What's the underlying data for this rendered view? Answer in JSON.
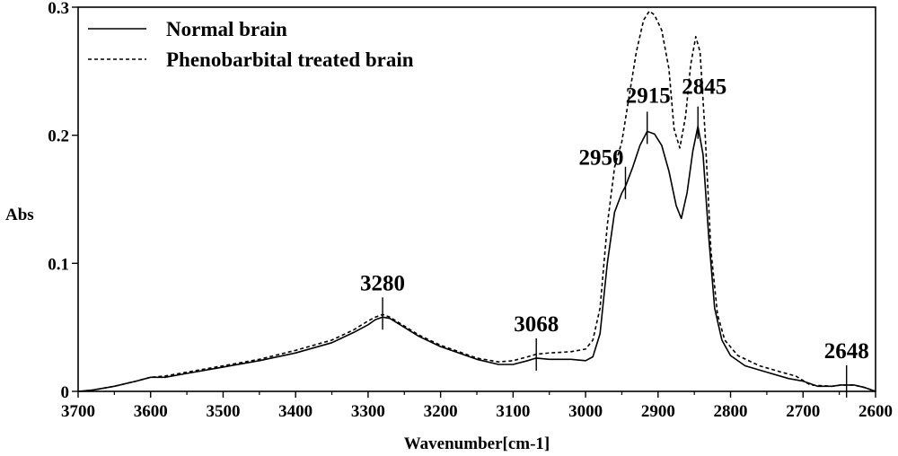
{
  "chart_data": {
    "type": "line",
    "xlabel": "Wavenumber[cm-1]",
    "ylabel": "Abs",
    "xlim": [
      3700,
      2600
    ],
    "ylim": [
      0,
      0.3
    ],
    "x_reversed": true,
    "grid": false,
    "legend_position": "top-left",
    "x_ticks": [
      3700,
      3600,
      3500,
      3400,
      3300,
      3200,
      3100,
      3000,
      2900,
      2800,
      2700,
      2600
    ],
    "x_tick_labels": [
      "3700",
      "3600",
      "3500",
      "3400",
      "3300",
      "3200",
      "3100",
      "3000",
      "2900",
      "2800",
      "2700",
      "2600"
    ],
    "y_ticks": [
      0,
      0.1,
      0.2,
      0.3
    ],
    "y_tick_labels": [
      "0",
      "0.1",
      "0.2",
      "0.3"
    ],
    "series": [
      {
        "name": "Normal brain",
        "style": "solid",
        "color": "#000000",
        "points": [
          [
            3700,
            0.0
          ],
          [
            3680,
            0.001
          ],
          [
            3650,
            0.004
          ],
          [
            3620,
            0.008
          ],
          [
            3600,
            0.011
          ],
          [
            3580,
            0.011
          ],
          [
            3550,
            0.014
          ],
          [
            3500,
            0.019
          ],
          [
            3450,
            0.024
          ],
          [
            3400,
            0.03
          ],
          [
            3350,
            0.038
          ],
          [
            3320,
            0.046
          ],
          [
            3300,
            0.052
          ],
          [
            3290,
            0.056
          ],
          [
            3280,
            0.058
          ],
          [
            3270,
            0.057
          ],
          [
            3250,
            0.05
          ],
          [
            3230,
            0.043
          ],
          [
            3200,
            0.035
          ],
          [
            3170,
            0.029
          ],
          [
            3150,
            0.025
          ],
          [
            3120,
            0.021
          ],
          [
            3100,
            0.021
          ],
          [
            3080,
            0.024
          ],
          [
            3068,
            0.026
          ],
          [
            3050,
            0.025
          ],
          [
            3020,
            0.025
          ],
          [
            3000,
            0.024
          ],
          [
            2990,
            0.027
          ],
          [
            2980,
            0.045
          ],
          [
            2970,
            0.1
          ],
          [
            2960,
            0.14
          ],
          [
            2950,
            0.155
          ],
          [
            2945,
            0.16
          ],
          [
            2935,
            0.175
          ],
          [
            2925,
            0.192
          ],
          [
            2915,
            0.203
          ],
          [
            2905,
            0.201
          ],
          [
            2895,
            0.192
          ],
          [
            2885,
            0.172
          ],
          [
            2875,
            0.145
          ],
          [
            2868,
            0.135
          ],
          [
            2860,
            0.155
          ],
          [
            2852,
            0.188
          ],
          [
            2845,
            0.207
          ],
          [
            2838,
            0.185
          ],
          [
            2830,
            0.12
          ],
          [
            2822,
            0.065
          ],
          [
            2812,
            0.04
          ],
          [
            2800,
            0.028
          ],
          [
            2780,
            0.02
          ],
          [
            2750,
            0.015
          ],
          [
            2720,
            0.01
          ],
          [
            2700,
            0.008
          ],
          [
            2680,
            0.004
          ],
          [
            2660,
            0.004
          ],
          [
            2648,
            0.005
          ],
          [
            2630,
            0.005
          ],
          [
            2615,
            0.003
          ],
          [
            2600,
            0.0
          ]
        ]
      },
      {
        "name": "Phenobarbital treated brain",
        "style": "dashed",
        "color": "#000000",
        "points": [
          [
            3700,
            0.0
          ],
          [
            3680,
            0.001
          ],
          [
            3650,
            0.004
          ],
          [
            3620,
            0.008
          ],
          [
            3600,
            0.011
          ],
          [
            3580,
            0.012
          ],
          [
            3550,
            0.015
          ],
          [
            3500,
            0.02
          ],
          [
            3450,
            0.025
          ],
          [
            3400,
            0.032
          ],
          [
            3350,
            0.04
          ],
          [
            3320,
            0.048
          ],
          [
            3300,
            0.055
          ],
          [
            3290,
            0.058
          ],
          [
            3280,
            0.06
          ],
          [
            3270,
            0.058
          ],
          [
            3250,
            0.051
          ],
          [
            3230,
            0.044
          ],
          [
            3200,
            0.036
          ],
          [
            3170,
            0.03
          ],
          [
            3150,
            0.026
          ],
          [
            3120,
            0.023
          ],
          [
            3100,
            0.024
          ],
          [
            3080,
            0.027
          ],
          [
            3068,
            0.029
          ],
          [
            3050,
            0.03
          ],
          [
            3020,
            0.031
          ],
          [
            3000,
            0.033
          ],
          [
            2990,
            0.04
          ],
          [
            2980,
            0.065
          ],
          [
            2970,
            0.13
          ],
          [
            2960,
            0.175
          ],
          [
            2950,
            0.195
          ],
          [
            2940,
            0.23
          ],
          [
            2930,
            0.265
          ],
          [
            2920,
            0.29
          ],
          [
            2912,
            0.297
          ],
          [
            2905,
            0.294
          ],
          [
            2895,
            0.282
          ],
          [
            2885,
            0.252
          ],
          [
            2878,
            0.205
          ],
          [
            2870,
            0.19
          ],
          [
            2862,
            0.215
          ],
          [
            2855,
            0.255
          ],
          [
            2848,
            0.277
          ],
          [
            2842,
            0.265
          ],
          [
            2835,
            0.2
          ],
          [
            2827,
            0.11
          ],
          [
            2818,
            0.06
          ],
          [
            2808,
            0.04
          ],
          [
            2790,
            0.028
          ],
          [
            2760,
            0.02
          ],
          [
            2730,
            0.015
          ],
          [
            2710,
            0.012
          ],
          [
            2690,
            0.005
          ],
          [
            2660,
            0.004
          ],
          [
            2648,
            0.005
          ],
          [
            2630,
            0.005
          ],
          [
            2615,
            0.003
          ],
          [
            2600,
            0.0
          ]
        ]
      }
    ],
    "annotations": [
      {
        "label": "3280",
        "x": 3280,
        "y": 0.058
      },
      {
        "label": "3068",
        "x": 3068,
        "y": 0.026
      },
      {
        "label": "2950",
        "x": 2945,
        "y": 0.16
      },
      {
        "label": "2915",
        "x": 2915,
        "y": 0.203
      },
      {
        "label": "2845",
        "x": 2845,
        "y": 0.207
      },
      {
        "label": "2648",
        "x": 2640,
        "y": 0.005
      }
    ]
  }
}
